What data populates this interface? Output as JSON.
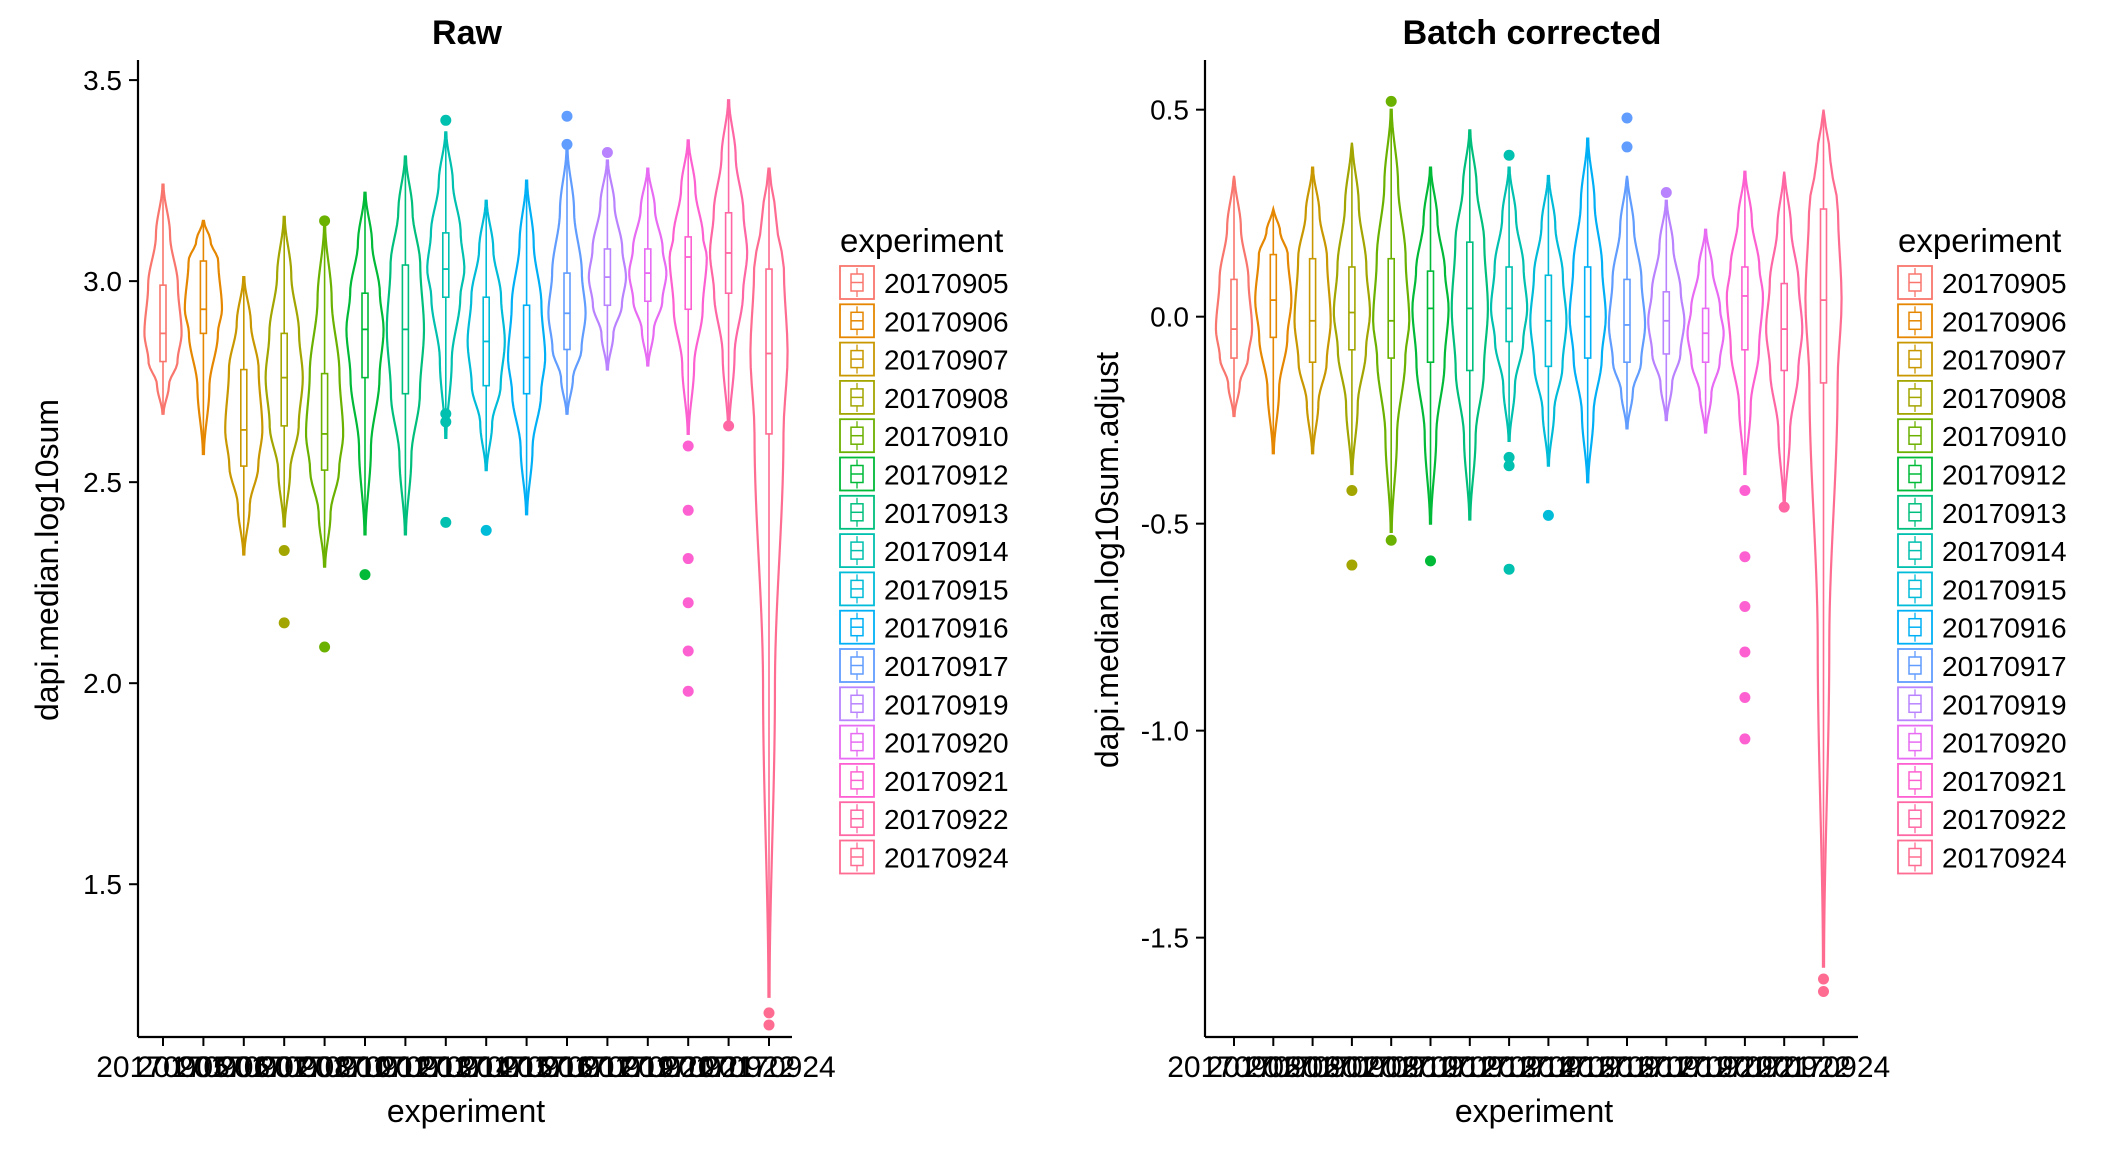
{
  "figure": {
    "legend_title": "experiment"
  },
  "chart_data": [
    {
      "type": "violin",
      "title": "Raw",
      "xlabel": "experiment",
      "ylabel": "dapi.median.log10sum",
      "ylim": [
        1.12,
        3.55
      ],
      "yticks": [
        1.5,
        2.0,
        2.5,
        3.0,
        3.5
      ],
      "ytick_labels": [
        "1.5",
        "2.0",
        "2.5",
        "3.0",
        "3.5"
      ],
      "categories": [
        "20170905",
        "20170906",
        "20170907",
        "20170908",
        "20170910",
        "20170912",
        "20170913",
        "20170914",
        "20170915",
        "20170916",
        "20170917",
        "20170919",
        "20170920",
        "20170921",
        "20170922",
        "20170924"
      ],
      "colors": [
        "#F8766D",
        "#E58700",
        "#C99800",
        "#A3A500",
        "#6BB100",
        "#00BA38",
        "#00BF7D",
        "#00C0AF",
        "#00BCD8",
        "#00B0F6",
        "#619CFF",
        "#B983FF",
        "#E76BF3",
        "#FD61D1",
        "#FF67A4",
        "#FF6C91"
      ],
      "series": [
        {
          "name": "20170905",
          "min": 2.67,
          "max": 3.24,
          "q1": 2.8,
          "median": 2.87,
          "q3": 2.99,
          "outliers": []
        },
        {
          "name": "20170906",
          "min": 2.57,
          "max": 3.15,
          "q1": 2.87,
          "median": 2.93,
          "q3": 3.05,
          "outliers": []
        },
        {
          "name": "20170907",
          "min": 2.32,
          "max": 3.01,
          "q1": 2.54,
          "median": 2.63,
          "q3": 2.78,
          "outliers": []
        },
        {
          "name": "20170908",
          "min": 2.39,
          "max": 3.16,
          "q1": 2.64,
          "median": 2.76,
          "q3": 2.87,
          "outliers": [
            2.33,
            2.15
          ]
        },
        {
          "name": "20170910",
          "min": 2.29,
          "max": 3.14,
          "q1": 2.53,
          "median": 2.62,
          "q3": 2.77,
          "outliers": [
            3.15,
            2.09
          ]
        },
        {
          "name": "20170912",
          "min": 2.37,
          "max": 3.22,
          "q1": 2.76,
          "median": 2.88,
          "q3": 2.97,
          "outliers": [
            2.27
          ]
        },
        {
          "name": "20170913",
          "min": 2.37,
          "max": 3.31,
          "q1": 2.72,
          "median": 2.88,
          "q3": 3.04,
          "outliers": []
        },
        {
          "name": "20170914",
          "min": 2.61,
          "max": 3.37,
          "q1": 2.96,
          "median": 3.03,
          "q3": 3.12,
          "outliers": [
            3.4,
            2.67,
            2.65,
            2.4
          ]
        },
        {
          "name": "20170915",
          "min": 2.53,
          "max": 3.2,
          "q1": 2.74,
          "median": 2.85,
          "q3": 2.96,
          "outliers": [
            2.38
          ]
        },
        {
          "name": "20170916",
          "min": 2.42,
          "max": 3.25,
          "q1": 2.72,
          "median": 2.81,
          "q3": 2.94,
          "outliers": []
        },
        {
          "name": "20170917",
          "min": 2.67,
          "max": 3.33,
          "q1": 2.83,
          "median": 2.92,
          "q3": 3.02,
          "outliers": [
            3.41,
            3.34
          ]
        },
        {
          "name": "20170919",
          "min": 2.78,
          "max": 3.3,
          "q1": 2.94,
          "median": 3.01,
          "q3": 3.08,
          "outliers": [
            3.32
          ]
        },
        {
          "name": "20170920",
          "min": 2.79,
          "max": 3.28,
          "q1": 2.95,
          "median": 3.02,
          "q3": 3.08,
          "outliers": []
        },
        {
          "name": "20170921",
          "min": 2.62,
          "max": 3.35,
          "q1": 2.93,
          "median": 3.06,
          "q3": 3.11,
          "outliers": [
            2.59,
            2.43,
            2.31,
            2.2,
            2.08,
            1.98
          ]
        },
        {
          "name": "20170922",
          "min": 2.63,
          "max": 3.45,
          "q1": 2.97,
          "median": 3.07,
          "q3": 3.17,
          "outliers": [
            2.64
          ]
        },
        {
          "name": "20170924",
          "min": 1.22,
          "max": 3.28,
          "q1": 2.62,
          "median": 2.82,
          "q3": 3.03,
          "outliers": [
            1.18,
            1.15
          ]
        }
      ]
    },
    {
      "type": "violin",
      "title": "Batch corrected",
      "xlabel": "experiment",
      "ylabel": "dapi.median.log10sum.adjust",
      "ylim": [
        -1.74,
        0.62
      ],
      "yticks": [
        -1.5,
        -1.0,
        -0.5,
        0.0,
        0.5
      ],
      "ytick_labels": [
        "-1.5",
        "-1.0",
        "-0.5",
        "0.0",
        "0.5"
      ],
      "categories": [
        "20170905",
        "20170906",
        "20170907",
        "20170908",
        "20170910",
        "20170912",
        "20170913",
        "20170914",
        "20170915",
        "20170916",
        "20170917",
        "20170919",
        "20170920",
        "20170921",
        "20170922",
        "20170924"
      ],
      "colors": [
        "#F8766D",
        "#E58700",
        "#C99800",
        "#A3A500",
        "#6BB100",
        "#00BA38",
        "#00BF7D",
        "#00C0AF",
        "#00BCD8",
        "#00B0F6",
        "#619CFF",
        "#B983FF",
        "#E76BF3",
        "#FD61D1",
        "#FF67A4",
        "#FF6C91"
      ],
      "series": [
        {
          "name": "20170905",
          "min": -0.24,
          "max": 0.34,
          "q1": -0.1,
          "median": -0.03,
          "q3": 0.09,
          "outliers": []
        },
        {
          "name": "20170906",
          "min": -0.33,
          "max": 0.26,
          "q1": -0.05,
          "median": 0.04,
          "q3": 0.15,
          "outliers": []
        },
        {
          "name": "20170907",
          "min": -0.33,
          "max": 0.36,
          "q1": -0.11,
          "median": -0.01,
          "q3": 0.14,
          "outliers": []
        },
        {
          "name": "20170908",
          "min": -0.38,
          "max": 0.42,
          "q1": -0.08,
          "median": 0.01,
          "q3": 0.12,
          "outliers": [
            -0.42,
            -0.6
          ]
        },
        {
          "name": "20170910",
          "min": -0.52,
          "max": 0.5,
          "q1": -0.1,
          "median": -0.01,
          "q3": 0.14,
          "outliers": [
            0.52,
            -0.54
          ]
        },
        {
          "name": "20170912",
          "min": -0.5,
          "max": 0.36,
          "q1": -0.11,
          "median": 0.02,
          "q3": 0.11,
          "outliers": [
            -0.59
          ]
        },
        {
          "name": "20170913",
          "min": -0.49,
          "max": 0.45,
          "q1": -0.13,
          "median": 0.02,
          "q3": 0.18,
          "outliers": []
        },
        {
          "name": "20170914",
          "min": -0.3,
          "max": 0.36,
          "q1": -0.06,
          "median": 0.02,
          "q3": 0.12,
          "outliers": [
            0.39,
            -0.34,
            -0.36,
            -0.61
          ]
        },
        {
          "name": "20170915",
          "min": -0.36,
          "max": 0.34,
          "q1": -0.12,
          "median": -0.01,
          "q3": 0.1,
          "outliers": [
            -0.48
          ]
        },
        {
          "name": "20170916",
          "min": -0.4,
          "max": 0.43,
          "q1": -0.1,
          "median": 0.0,
          "q3": 0.12,
          "outliers": []
        },
        {
          "name": "20170917",
          "min": -0.27,
          "max": 0.34,
          "q1": -0.11,
          "median": -0.02,
          "q3": 0.09,
          "outliers": [
            0.48,
            0.41
          ]
        },
        {
          "name": "20170919",
          "min": -0.25,
          "max": 0.28,
          "q1": -0.09,
          "median": -0.01,
          "q3": 0.06,
          "outliers": [
            0.3
          ]
        },
        {
          "name": "20170920",
          "min": -0.28,
          "max": 0.21,
          "q1": -0.11,
          "median": -0.04,
          "q3": 0.02,
          "outliers": []
        },
        {
          "name": "20170921",
          "min": -0.38,
          "max": 0.35,
          "q1": -0.08,
          "median": 0.05,
          "q3": 0.12,
          "outliers": [
            -0.42,
            -0.58,
            -0.7,
            -0.81,
            -0.92,
            -1.02
          ]
        },
        {
          "name": "20170922",
          "min": -0.46,
          "max": 0.35,
          "q1": -0.13,
          "median": -0.03,
          "q3": 0.08,
          "outliers": [
            -0.46
          ]
        },
        {
          "name": "20170924",
          "min": -1.57,
          "max": 0.5,
          "q1": -0.16,
          "median": 0.04,
          "q3": 0.26,
          "outliers": [
            -1.6,
            -1.63
          ]
        }
      ]
    }
  ]
}
